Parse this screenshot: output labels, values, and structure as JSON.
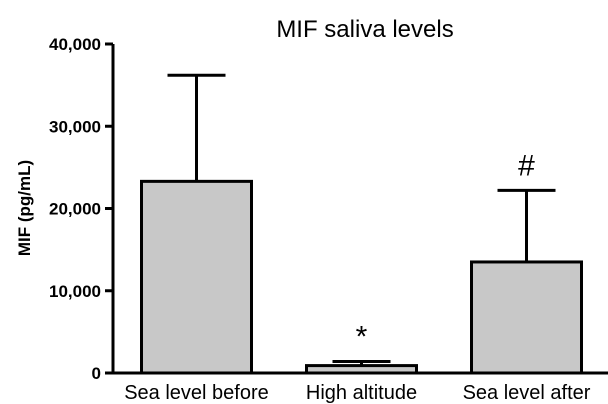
{
  "chart_data": {
    "type": "bar",
    "title": "MIF saliva levels",
    "ylabel": "MIF (pg/mL)",
    "xlabel": "",
    "categories": [
      "Sea level before",
      "High altitude",
      "Sea level after"
    ],
    "values": [
      23300,
      900,
      13500
    ],
    "error_upper": [
      36200,
      1400,
      22200
    ],
    "annotations": [
      "",
      "*",
      "#"
    ],
    "ylim": [
      0,
      40000
    ],
    "yticks": [
      0,
      10000,
      20000,
      30000,
      40000
    ],
    "ytick_labels": [
      "0",
      "10,000",
      "20,000",
      "30,000",
      "40,000"
    ],
    "grid": false,
    "legend": "none",
    "bar_color": "#c8c8c8",
    "edge_color": "#000000"
  }
}
